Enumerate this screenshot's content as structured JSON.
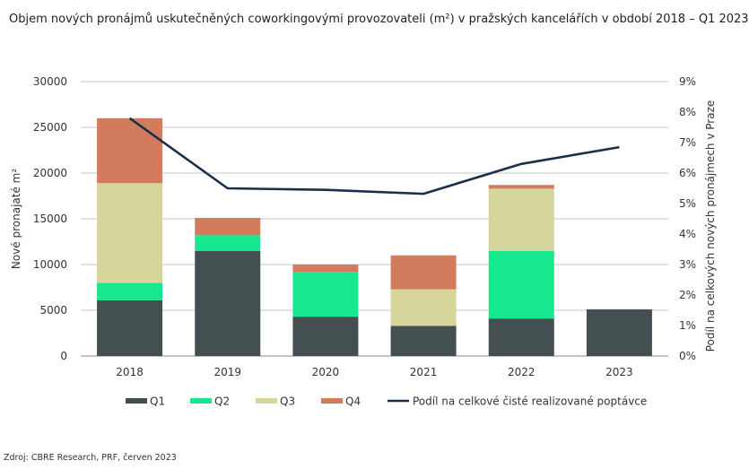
{
  "title": "Objem nových pronájmů uskutečněných coworkingovými provozovateli (m²) v pražských kancelářích v období 2018 – Q1 2023",
  "source": "Zdroj: CBRE Research, PRF, červen 2023",
  "colors": {
    "Q1": "#444f52",
    "Q2": "#17e88f",
    "Q3": "#d6d59b",
    "Q4": "#d27b5d",
    "line": "#1b2e4b",
    "grid": "#8a8a8a"
  },
  "chart_data": {
    "type": "bar",
    "stacked": true,
    "categories": [
      "2018",
      "2019",
      "2020",
      "2021",
      "2022",
      "2023"
    ],
    "series": [
      {
        "name": "Q1",
        "values": [
          6100,
          11500,
          4300,
          3300,
          4100,
          5100
        ]
      },
      {
        "name": "Q2",
        "values": [
          1900,
          1700,
          4900,
          0,
          7400,
          0
        ]
      },
      {
        "name": "Q3",
        "values": [
          10900,
          0,
          0,
          4000,
          6800,
          0
        ]
      },
      {
        "name": "Q4",
        "values": [
          7100,
          1900,
          800,
          3700,
          400,
          0
        ]
      }
    ],
    "line_series": {
      "name": "Podíl na celkové čisté realizované poptávce",
      "axis": "right",
      "values": [
        7.8,
        5.5,
        5.45,
        5.32,
        6.3,
        6.85
      ]
    },
    "ylabel": "Nové pronajaté m²",
    "y2label": "Podíl na celkových nových pronájmech v Praze",
    "ylim": [
      0,
      30000
    ],
    "y2lim": [
      0,
      9
    ],
    "yticks": [
      "0",
      "5000",
      "10000",
      "15000",
      "20000",
      "25000",
      "30000"
    ],
    "y2ticks": [
      "0%",
      "1%",
      "2%",
      "3%",
      "4%",
      "5%",
      "6%",
      "7%",
      "8%",
      "9%"
    ],
    "grid": true,
    "legend_position": "bottom"
  }
}
